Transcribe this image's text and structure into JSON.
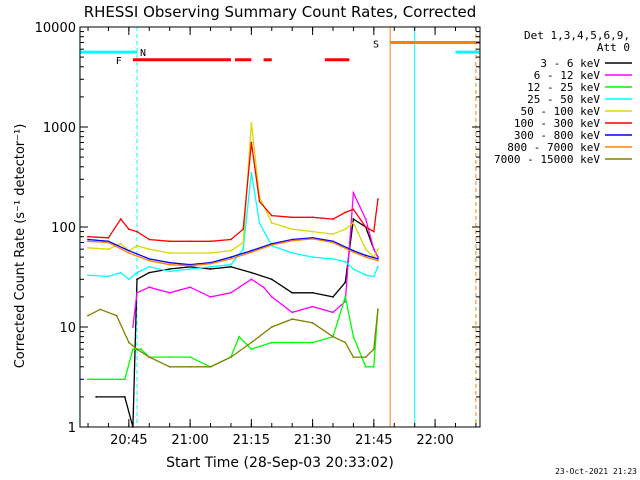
{
  "chart_data": {
    "type": "line",
    "title": "RHESSI Observing Summary Count Rates, Corrected",
    "xlabel": "Start Time (28-Sep-03 20:33:02)",
    "ylabel": "Corrected Count Rate (s⁻¹ detector⁻¹)",
    "yscale": "log",
    "ylim": [
      1,
      10000
    ],
    "xlim": [
      "20:33:02",
      "22:11:00"
    ],
    "xticks": [
      "20:45",
      "21:00",
      "21:15",
      "21:30",
      "21:45",
      "22:00"
    ],
    "yticks": [
      "1",
      "10",
      "100",
      "1000",
      "10000"
    ],
    "grid": false,
    "legend_position": "right",
    "legend_header": [
      "Det 1,3,4,5,6,9,",
      "Att 0"
    ],
    "timestamp": "23-Oct-2021 21:23",
    "series": [
      {
        "name": "3 - 6 keV",
        "color": "#000000",
        "x": [
          "20:37",
          "20:44",
          "20:46",
          "20:47",
          "20:50",
          "20:55",
          "21:00",
          "21:05",
          "21:10",
          "21:15",
          "21:20",
          "21:25",
          "21:30",
          "21:35",
          "21:38",
          "21:40",
          "21:43",
          "21:45",
          "21:46"
        ],
        "values": [
          2,
          2,
          1,
          30,
          35,
          38,
          40,
          38,
          40,
          35,
          30,
          22,
          22,
          20,
          28,
          120,
          100,
          60,
          50
        ]
      },
      {
        "name": "6 - 12 keV",
        "color": "#ff00ff",
        "x": [
          "20:46",
          "20:47",
          "20:50",
          "20:55",
          "21:00",
          "21:05",
          "21:10",
          "21:15",
          "21:18",
          "21:20",
          "21:25",
          "21:30",
          "21:35",
          "21:38",
          "21:40",
          "21:43",
          "21:45",
          "21:46"
        ],
        "values": [
          10,
          22,
          25,
          22,
          25,
          20,
          22,
          30,
          25,
          20,
          14,
          16,
          14,
          18,
          220,
          120,
          60,
          50
        ]
      },
      {
        "name": "12 - 25 keV",
        "color": "#00ff00",
        "x": [
          "20:35",
          "20:44",
          "20:46",
          "20:48",
          "20:50",
          "20:55",
          "21:00",
          "21:05",
          "21:10",
          "21:12",
          "21:15",
          "21:20",
          "21:25",
          "21:30",
          "21:35",
          "21:38",
          "21:40",
          "21:43",
          "21:45",
          "21:46"
        ],
        "values": [
          3,
          3,
          6,
          6,
          5,
          5,
          5,
          4,
          5,
          8,
          6,
          7,
          7,
          7,
          8,
          20,
          8,
          4,
          4,
          15
        ]
      },
      {
        "name": "25 - 50 keV",
        "color": "#00ffff",
        "x": [
          "20:35",
          "20:40",
          "20:43",
          "20:45",
          "20:47",
          "20:50",
          "20:55",
          "21:00",
          "21:05",
          "21:10",
          "21:13",
          "21:15",
          "21:17",
          "21:20",
          "21:25",
          "21:30",
          "21:35",
          "21:38",
          "21:40",
          "21:43",
          "21:45",
          "21:46"
        ],
        "values": [
          33,
          32,
          35,
          30,
          35,
          40,
          36,
          38,
          40,
          42,
          60,
          350,
          110,
          65,
          55,
          50,
          48,
          45,
          38,
          33,
          32,
          40
        ]
      },
      {
        "name": "50 - 100 keV",
        "color": "#d8d800",
        "x": [
          "20:35",
          "20:40",
          "20:43",
          "20:45",
          "20:47",
          "20:50",
          "20:55",
          "21:00",
          "21:05",
          "21:10",
          "21:13",
          "21:15",
          "21:17",
          "21:20",
          "21:25",
          "21:30",
          "21:35",
          "21:38",
          "21:40",
          "21:43",
          "21:45",
          "21:46"
        ],
        "values": [
          62,
          60,
          68,
          58,
          65,
          60,
          55,
          55,
          55,
          58,
          70,
          1100,
          200,
          110,
          95,
          90,
          85,
          95,
          110,
          60,
          50,
          60
        ]
      },
      {
        "name": "100 - 300 keV",
        "color": "#ff0000",
        "x": [
          "20:35",
          "20:40",
          "20:43",
          "20:45",
          "20:47",
          "20:50",
          "20:55",
          "21:00",
          "21:05",
          "21:10",
          "21:13",
          "21:15",
          "21:17",
          "21:20",
          "21:25",
          "21:30",
          "21:35",
          "21:38",
          "21:40",
          "21:43",
          "21:45",
          "21:46"
        ],
        "values": [
          80,
          78,
          120,
          95,
          90,
          75,
          72,
          72,
          72,
          75,
          95,
          700,
          180,
          130,
          125,
          125,
          120,
          140,
          150,
          100,
          90,
          190
        ]
      },
      {
        "name": "300 - 800 keV",
        "color": "#0000ff",
        "x": [
          "20:35",
          "20:40",
          "20:45",
          "20:50",
          "20:55",
          "21:00",
          "21:05",
          "21:10",
          "21:15",
          "21:20",
          "21:25",
          "21:30",
          "21:35",
          "21:40",
          "21:43",
          "21:46"
        ],
        "values": [
          75,
          72,
          58,
          48,
          44,
          42,
          44,
          50,
          58,
          68,
          75,
          78,
          72,
          58,
          52,
          48
        ]
      },
      {
        "name": "800 - 7000 keV",
        "color": "#ff8000",
        "x": [
          "20:35",
          "20:40",
          "20:45",
          "20:50",
          "20:55",
          "21:00",
          "21:05",
          "21:10",
          "21:15",
          "21:20",
          "21:25",
          "21:30",
          "21:35",
          "21:40",
          "21:43",
          "21:46"
        ],
        "values": [
          72,
          70,
          55,
          46,
          42,
          41,
          43,
          48,
          56,
          66,
          73,
          76,
          70,
          56,
          50,
          46
        ]
      },
      {
        "name": "7000 - 15000 keV",
        "color": "#808000",
        "x": [
          "20:35",
          "20:38",
          "20:42",
          "20:45",
          "20:47",
          "20:50",
          "20:55",
          "21:00",
          "21:05",
          "21:10",
          "21:15",
          "21:20",
          "21:25",
          "21:30",
          "21:35",
          "21:38",
          "21:40",
          "21:43",
          "21:45",
          "21:46"
        ],
        "values": [
          13,
          15,
          13,
          7,
          6,
          5,
          4,
          4,
          4,
          5,
          7,
          10,
          12,
          11,
          8,
          7,
          5,
          5,
          6,
          15
        ]
      }
    ],
    "bars": [
      {
        "label": "N",
        "color": "#00ffff",
        "y": 5600,
        "segments": [
          [
            "20:33",
            "20:47"
          ],
          [
            "22:05",
            "22:11"
          ]
        ],
        "label_at": "20:47"
      },
      {
        "label": "F",
        "color": "#ff0000",
        "y": 4700,
        "segments": [
          [
            "20:46",
            "21:10"
          ],
          [
            "21:11",
            "21:15"
          ],
          [
            "21:18",
            "21:20"
          ],
          [
            "21:33",
            "21:39"
          ]
        ],
        "label_at": "20:44"
      },
      {
        "label": "S",
        "color": "#ff8000",
        "y": 7000,
        "segments": [
          [
            "21:49",
            "22:11"
          ]
        ],
        "label_at": "21:47"
      }
    ],
    "vlines": [
      {
        "x": "20:33",
        "color": "#00ffff",
        "style": "solid"
      },
      {
        "x": "20:47",
        "color": "#00ffff",
        "style": "dashed"
      },
      {
        "x": "21:49",
        "color": "#ff8000",
        "style": "solid"
      },
      {
        "x": "21:55",
        "color": "#00ffff",
        "style": "solid"
      },
      {
        "x": "22:10",
        "color": "#ff8000",
        "style": "dashed"
      }
    ]
  }
}
